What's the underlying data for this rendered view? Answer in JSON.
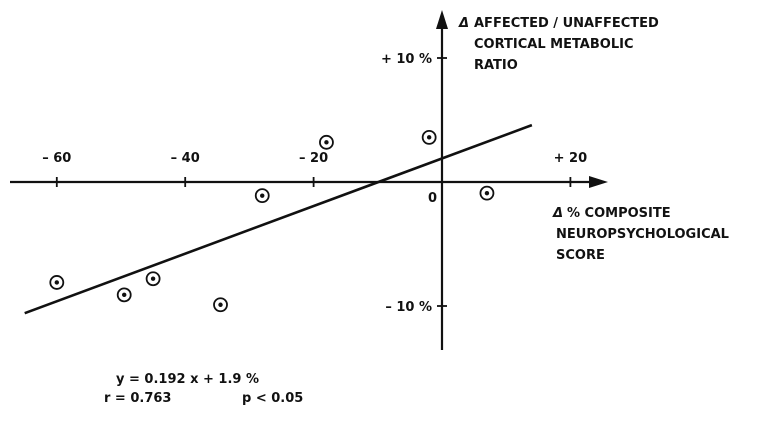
{
  "chart_data": {
    "type": "scatter",
    "y_axis_label": [
      "AFFECTED / UNAFFECTED",
      "CORTICAL METABOLIC",
      "RATIO"
    ],
    "y_axis_symbol": "Δ",
    "x_axis_label": [
      "% COMPOSITE",
      "NEUROPSYCHOLOGICAL",
      "SCORE"
    ],
    "x_axis_symbol": "Δ",
    "x_ticks": [
      {
        "value": -60,
        "label": "– 60"
      },
      {
        "value": -40,
        "label": "– 40"
      },
      {
        "value": -20,
        "label": "– 20"
      },
      {
        "value": 0,
        "label": "0"
      },
      {
        "value": 20,
        "label": "+ 20"
      }
    ],
    "y_ticks": [
      {
        "value": 10,
        "label": "+ 10 %"
      },
      {
        "value": -10,
        "label": "– 10 %"
      }
    ],
    "xlim": [
      -68,
      32
    ],
    "ylim": [
      -13,
      13
    ],
    "points": [
      {
        "x": -60,
        "y": -8.1
      },
      {
        "x": -49.5,
        "y": -9.1
      },
      {
        "x": -45,
        "y": -7.8
      },
      {
        "x": -34.5,
        "y": -9.9
      },
      {
        "x": -28,
        "y": -1.1
      },
      {
        "x": -18,
        "y": 3.2
      },
      {
        "x": -2,
        "y": 3.6
      },
      {
        "x": 7,
        "y": -0.9
      }
    ],
    "regression": {
      "slope": 0.192,
      "intercept": 1.9,
      "x_range": [
        -65,
        14
      ]
    },
    "annotation": {
      "equation": "y = 0.192 x + 1.9 %",
      "r": "r = 0.763",
      "p": "p < 0.05"
    },
    "grid": false,
    "legend": "none"
  }
}
